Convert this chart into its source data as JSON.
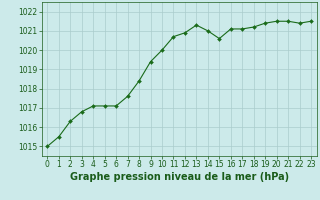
{
  "x": [
    0,
    1,
    2,
    3,
    4,
    5,
    6,
    7,
    8,
    9,
    10,
    11,
    12,
    13,
    14,
    15,
    16,
    17,
    18,
    19,
    20,
    21,
    22,
    23
  ],
  "y": [
    1015.0,
    1015.5,
    1016.3,
    1016.8,
    1017.1,
    1017.1,
    1017.1,
    1017.6,
    1018.4,
    1019.4,
    1020.0,
    1020.7,
    1020.9,
    1021.3,
    1021.0,
    1020.6,
    1021.1,
    1021.1,
    1021.2,
    1021.4,
    1021.5,
    1021.5,
    1021.4,
    1021.5
  ],
  "line_color": "#1a6b1a",
  "marker": "D",
  "marker_size": 2.0,
  "bg_color": "#cceaea",
  "grid_color": "#aacccc",
  "xlabel": "Graphe pression niveau de la mer (hPa)",
  "xlabel_color": "#1a5c1a",
  "xlabel_fontsize": 7,
  "tick_color": "#1a5c1a",
  "tick_fontsize": 5.5,
  "ylim": [
    1014.5,
    1022.5
  ],
  "yticks": [
    1015,
    1016,
    1017,
    1018,
    1019,
    1020,
    1021,
    1022
  ],
  "xlim": [
    -0.5,
    23.5
  ],
  "xticks": [
    0,
    1,
    2,
    3,
    4,
    5,
    6,
    7,
    8,
    9,
    10,
    11,
    12,
    13,
    14,
    15,
    16,
    17,
    18,
    19,
    20,
    21,
    22,
    23
  ]
}
